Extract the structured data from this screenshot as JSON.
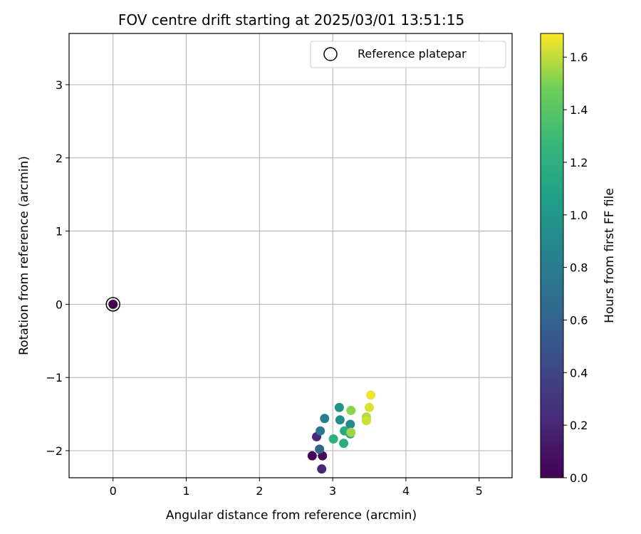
{
  "chart_data": {
    "type": "scatter",
    "title": "FOV centre drift starting at 2025/03/01 13:51:15",
    "xlabel": "Angular distance from reference (arcmin)",
    "ylabel": "Rotation from reference (arcmin)",
    "xlim": [
      -0.6,
      5.45
    ],
    "ylim": [
      -2.37,
      3.7
    ],
    "xticks": [
      0,
      1,
      2,
      3,
      4,
      5
    ],
    "yticks": [
      -2,
      -1,
      0,
      1,
      2,
      3
    ],
    "grid": true,
    "legend": {
      "position": "top-right",
      "entries": [
        "Reference platepar"
      ]
    },
    "colorbar": {
      "label": "Hours from first FF file",
      "colormap": "viridis",
      "range": [
        0,
        1.69
      ],
      "ticks": [
        0.0,
        0.2,
        0.4,
        0.6,
        0.8,
        1.0,
        1.2,
        1.4,
        1.6
      ],
      "tick_labels": [
        "0.0",
        "0.2",
        "0.4",
        "0.6",
        "0.8",
        "1.0",
        "1.2",
        "1.4",
        "1.6"
      ]
    },
    "reference_point": {
      "x": 0,
      "y": 0,
      "color_value": 0.0
    },
    "series": [
      {
        "points": [
          {
            "x": 2.72,
            "y": -2.07,
            "c": 0.02
          },
          {
            "x": 2.86,
            "y": -2.07,
            "c": 0.05
          },
          {
            "x": 2.85,
            "y": -2.25,
            "c": 0.2
          },
          {
            "x": 2.78,
            "y": -1.81,
            "c": 0.22
          },
          {
            "x": 2.82,
            "y": -1.98,
            "c": 0.6
          },
          {
            "x": 2.83,
            "y": -1.73,
            "c": 0.75
          },
          {
            "x": 2.89,
            "y": -1.56,
            "c": 0.82
          },
          {
            "x": 3.09,
            "y": -1.41,
            "c": 0.98
          },
          {
            "x": 3.1,
            "y": -1.58,
            "c": 0.95
          },
          {
            "x": 3.24,
            "y": -1.64,
            "c": 0.9
          },
          {
            "x": 3.24,
            "y": -1.77,
            "c": 1.05
          },
          {
            "x": 3.16,
            "y": -1.73,
            "c": 1.15
          },
          {
            "x": 3.01,
            "y": -1.84,
            "c": 1.2
          },
          {
            "x": 3.15,
            "y": -1.9,
            "c": 1.18
          },
          {
            "x": 3.25,
            "y": -1.45,
            "c": 1.52
          },
          {
            "x": 3.25,
            "y": -1.75,
            "c": 1.55
          },
          {
            "x": 3.46,
            "y": -1.54,
            "c": 1.58
          },
          {
            "x": 3.46,
            "y": -1.59,
            "c": 1.62
          },
          {
            "x": 3.5,
            "y": -1.41,
            "c": 1.64
          },
          {
            "x": 3.52,
            "y": -1.24,
            "c": 1.67
          }
        ]
      }
    ]
  }
}
